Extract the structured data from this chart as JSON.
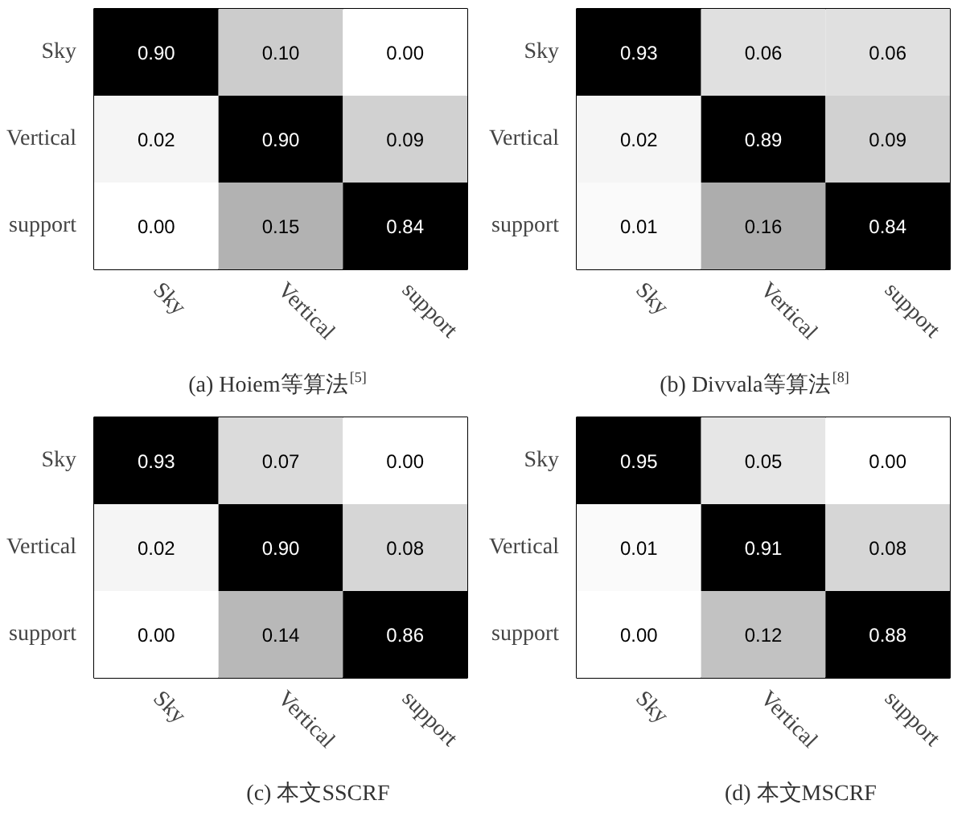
{
  "chart_data": [
    {
      "type": "heatmap",
      "data_labels": true,
      "title": "(a) Hoiem等算法$^{[5]}$",
      "categories": [
        "Sky",
        "Vertical",
        "support"
      ],
      "y_categories": [
        "Sky",
        "Vertical",
        "support"
      ],
      "cells": [
        [
          0.9,
          0.1,
          0.0
        ],
        [
          0.02,
          0.9,
          0.09
        ],
        [
          0.0,
          0.15,
          0.84
        ]
      ],
      "cell_labels": [
        [
          "0.90",
          "0.10",
          "0.00"
        ],
        [
          "0.02",
          "0.90",
          "0.09"
        ],
        [
          "0.00",
          "0.15",
          "0.84"
        ]
      ]
    },
    {
      "type": "heatmap",
      "data_labels": true,
      "title": "(b) Divvala等算法$^{[8]}$",
      "categories": [
        "Sky",
        "Vertical",
        "support"
      ],
      "y_categories": [
        "Sky",
        "Vertical",
        "support"
      ],
      "cells": [
        [
          0.93,
          0.06,
          0.06
        ],
        [
          0.02,
          0.89,
          0.09
        ],
        [
          0.01,
          0.16,
          0.84
        ]
      ],
      "cell_labels": [
        [
          "0.93",
          "0.06",
          "0.06"
        ],
        [
          "0.02",
          "0.89",
          "0.09"
        ],
        [
          "0.01",
          "0.16",
          "0.84"
        ]
      ]
    },
    {
      "type": "heatmap",
      "data_labels": true,
      "title": "(c) 本文SSCRF",
      "categories": [
        "Sky",
        "Vertical",
        "support"
      ],
      "y_categories": [
        "Sky",
        "Vertical",
        "support"
      ],
      "cells": [
        [
          0.93,
          0.07,
          0.0
        ],
        [
          0.02,
          0.9,
          0.08
        ],
        [
          0.0,
          0.14,
          0.86
        ]
      ],
      "cell_labels": [
        [
          "0.93",
          "0.07",
          "0.00"
        ],
        [
          "0.02",
          "0.90",
          "0.08"
        ],
        [
          "0.00",
          "0.14",
          "0.86"
        ]
      ]
    },
    {
      "type": "heatmap",
      "data_labels": true,
      "title": "(d) 本文MSCRF",
      "categories": [
        "Sky",
        "Vertical",
        "support"
      ],
      "y_categories": [
        "Sky",
        "Vertical",
        "support"
      ],
      "cells": [
        [
          0.95,
          0.05,
          0.0
        ],
        [
          0.01,
          0.91,
          0.08
        ],
        [
          0.0,
          0.12,
          0.88
        ]
      ],
      "cell_labels": [
        [
          "0.95",
          "0.05",
          "0.00"
        ],
        [
          "0.01",
          "0.91",
          "0.08"
        ],
        [
          "0.00",
          "0.12",
          "0.88"
        ]
      ]
    }
  ]
}
